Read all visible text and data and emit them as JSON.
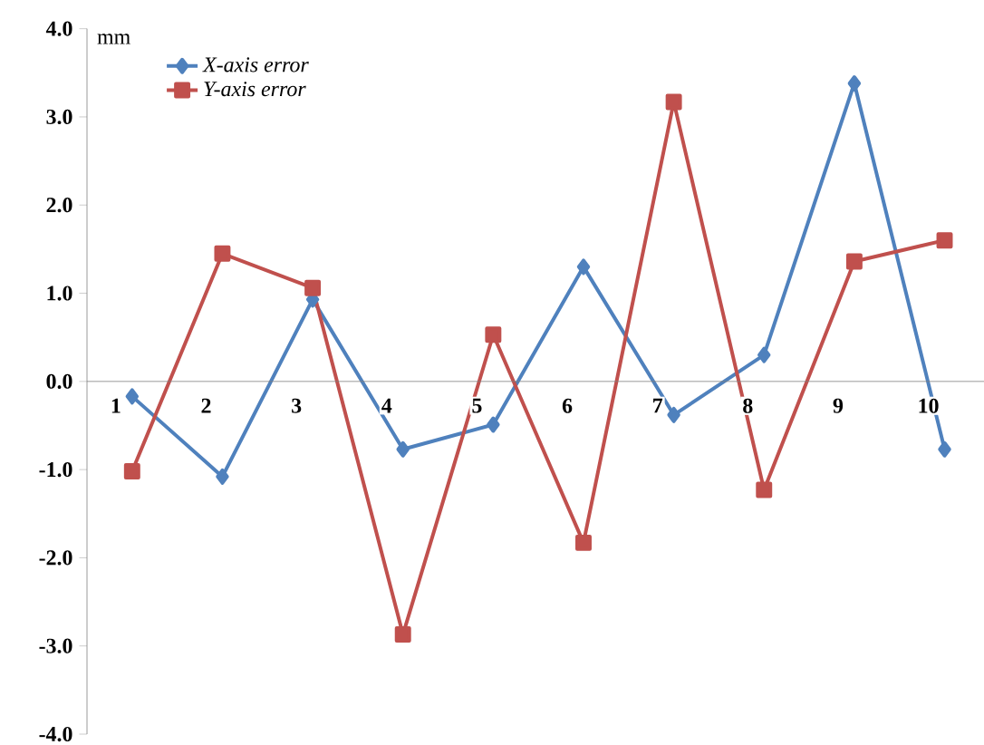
{
  "chart_data": {
    "type": "line",
    "ylabel": "mm",
    "categories": [
      "1",
      "2",
      "3",
      "4",
      "5",
      "6",
      "7",
      "8",
      "9",
      "10"
    ],
    "series": [
      {
        "name": "X-axis error",
        "color": "#4f81bd",
        "marker": "diamond",
        "values": [
          -0.17,
          -1.08,
          0.93,
          -0.77,
          -0.49,
          1.3,
          -0.38,
          0.3,
          3.38,
          -0.77
        ]
      },
      {
        "name": "Y-axis error",
        "color": "#c0504d",
        "marker": "square",
        "values": [
          -1.02,
          1.45,
          1.06,
          -2.87,
          0.53,
          -1.83,
          3.17,
          -1.23,
          1.36,
          1.6
        ]
      }
    ],
    "ylim": [
      -4,
      4
    ],
    "yticks": [
      {
        "value": -4,
        "label": "-4.0"
      },
      {
        "value": -3,
        "label": "-3.0"
      },
      {
        "value": -2,
        "label": "-2.0"
      },
      {
        "value": -1,
        "label": "-1.0"
      },
      {
        "value": 0,
        "label": "0.0"
      },
      {
        "value": 1,
        "label": "1.0"
      },
      {
        "value": 2,
        "label": "2.0"
      },
      {
        "value": 3,
        "label": "3.0"
      },
      {
        "value": 4,
        "label": "4.0"
      }
    ],
    "legend": "top left",
    "line_style": "solid"
  }
}
